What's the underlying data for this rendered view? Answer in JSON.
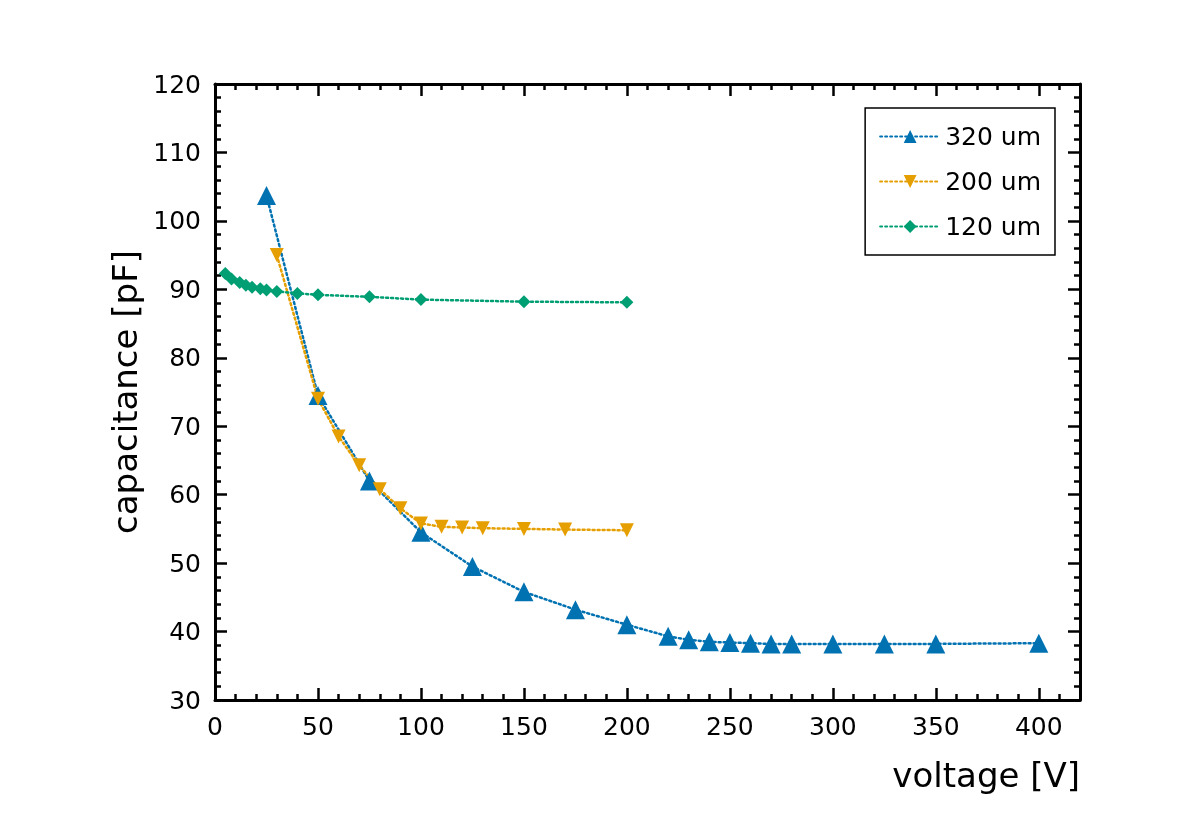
{
  "chart_data": {
    "type": "line",
    "xlabel": "voltage [V]",
    "ylabel": "capacitance [pF]",
    "xlim": [
      0,
      420
    ],
    "xticks": [
      0,
      50,
      100,
      150,
      200,
      250,
      300,
      350,
      400
    ],
    "ylim": [
      30,
      120
    ],
    "yticks": [
      30,
      40,
      50,
      60,
      70,
      80,
      90,
      100,
      110,
      120
    ],
    "grid": false,
    "legend": "top right",
    "line_style": "dotted",
    "series": [
      {
        "name": "320 um",
        "color": "#0072b2",
        "marker": "triangle",
        "x": [
          25,
          50,
          75,
          100,
          125,
          150,
          175,
          200,
          220,
          230,
          240,
          250,
          260,
          270,
          280,
          300,
          325,
          350,
          400
        ],
        "values": [
          103.7,
          74.5,
          62,
          54.5,
          49.5,
          45.8,
          43.2,
          41,
          39.3,
          38.8,
          38.5,
          38.4,
          38.3,
          38.2,
          38.2,
          38.2,
          38.2,
          38.2,
          38.3
        ]
      },
      {
        "name": "200 um",
        "color": "#e69f00",
        "marker": "triangle-down",
        "x": [
          30,
          50,
          60,
          70,
          80,
          90,
          100,
          110,
          120,
          130,
          150,
          170,
          200
        ],
        "values": [
          95,
          74,
          68.5,
          64.3,
          60.8,
          58,
          55.8,
          55.3,
          55.2,
          55.1,
          55,
          54.9,
          54.8
        ]
      },
      {
        "name": "120 um",
        "color": "#009e73",
        "marker": "diamond",
        "x": [
          5,
          8,
          12,
          15,
          18,
          22,
          25,
          30,
          40,
          50,
          75,
          100,
          150,
          200
        ],
        "values": [
          92.3,
          91.5,
          91,
          90.6,
          90.3,
          90.1,
          89.9,
          89.7,
          89.4,
          89.2,
          88.9,
          88.5,
          88.2,
          88.1
        ]
      }
    ]
  }
}
